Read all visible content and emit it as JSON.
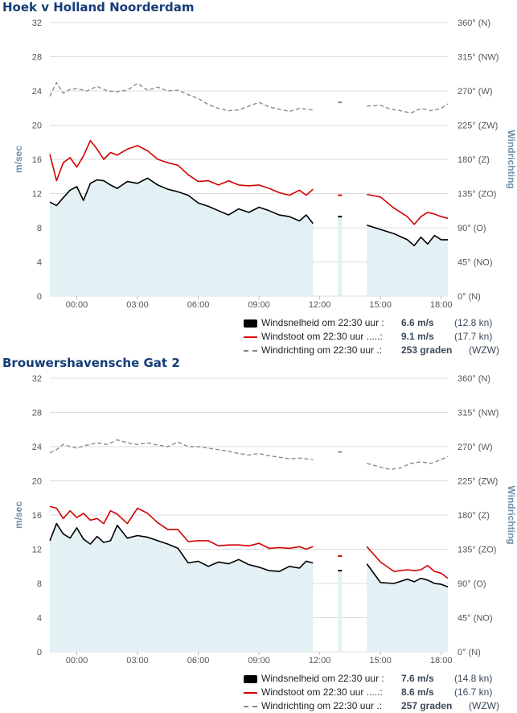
{
  "colors": {
    "speed_line": "#000000",
    "gust_line": "#d40000",
    "direction_line": "#8c8c8c",
    "area_fill": "#e3f1f4",
    "title": "#143c78",
    "axis_title": "#6f8fa8",
    "grid": "#dcdcdc"
  },
  "panels": [
    {
      "title": "Hoek v Holland Noorderdam",
      "legend": {
        "speed": {
          "label": "Windsnelheid om 22:30 uur :",
          "value": "6.6 m/s",
          "sub": "(12.8 kn)"
        },
        "gust": {
          "label": "Windstoot om 22:30 uur .....:",
          "value": "9.1 m/s",
          "sub": "(17.7 kn)"
        },
        "direction": {
          "label": "Windrichting om 22:30 uur .:",
          "value": "253 graden",
          "sub": "(WZW)"
        }
      },
      "chart_data": {
        "type": "line",
        "title": "Hoek v Holland Noorderdam",
        "ylabel": "m/sec",
        "y2label": "Windrichting",
        "ylim": [
          0,
          32
        ],
        "y2lim": [
          0,
          360
        ],
        "xlim": [
          -1.33,
          18.33
        ],
        "x_unit": "hours (00:00 = midnight)",
        "y_ticks": [
          "0",
          "4",
          "8",
          "12",
          "16",
          "20",
          "24",
          "28",
          "32"
        ],
        "y2_ticks": [
          "0° (N)",
          "45° (NO)",
          "90° (O)",
          "135° (ZO)",
          "180° (Z)",
          "225° (ZW)",
          "270° (W)",
          "315° (NW)",
          "360° (N)"
        ],
        "x_ticks": [
          "00:00",
          "03:00",
          "06:00",
          "09:00",
          "12:00",
          "15:00",
          "18:00"
        ],
        "gap": [
          11.67,
          14.17
        ],
        "series": [
          {
            "name": "Windsnelheid",
            "axis": "left",
            "x": [
              -1.33,
              -1.0,
              -0.67,
              -0.33,
              0.0,
              0.33,
              0.67,
              1.0,
              1.33,
              1.67,
              2.0,
              2.5,
              3.0,
              3.5,
              4.0,
              4.5,
              5.0,
              5.5,
              6.0,
              6.5,
              7.0,
              7.5,
              8.0,
              8.5,
              9.0,
              9.5,
              10.0,
              10.5,
              11.0,
              11.33,
              11.67,
              13.0,
              14.33,
              15.0,
              15.67,
              16.33,
              16.67,
              17.0,
              17.33,
              17.67,
              18.0,
              18.33
            ],
            "values": [
              11.0,
              10.6,
              11.5,
              12.4,
              12.8,
              11.2,
              13.2,
              13.6,
              13.5,
              13.0,
              12.6,
              13.4,
              13.2,
              13.8,
              13.0,
              12.5,
              12.2,
              11.8,
              10.9,
              10.5,
              10.0,
              9.5,
              10.2,
              9.8,
              10.4,
              10.0,
              9.5,
              9.3,
              8.8,
              9.5,
              8.5,
              9.3,
              8.3,
              7.8,
              7.3,
              6.6,
              5.9,
              6.9,
              6.1,
              7.1,
              6.6,
              6.6
            ]
          },
          {
            "name": "Windstoot",
            "axis": "left",
            "x": [
              -1.33,
              -1.0,
              -0.67,
              -0.33,
              0.0,
              0.33,
              0.67,
              1.0,
              1.33,
              1.67,
              2.0,
              2.5,
              3.0,
              3.5,
              4.0,
              4.5,
              5.0,
              5.5,
              6.0,
              6.5,
              7.0,
              7.5,
              8.0,
              8.5,
              9.0,
              9.5,
              10.0,
              10.5,
              11.0,
              11.33,
              11.67,
              13.0,
              14.33,
              15.0,
              15.67,
              16.33,
              16.67,
              17.0,
              17.33,
              17.67,
              18.0,
              18.33
            ],
            "values": [
              16.6,
              13.5,
              15.6,
              16.2,
              15.1,
              16.4,
              18.2,
              17.2,
              16.0,
              16.8,
              16.5,
              17.2,
              17.6,
              17.0,
              16.0,
              15.6,
              15.3,
              14.2,
              13.4,
              13.5,
              13.0,
              13.5,
              13.0,
              12.9,
              13.0,
              12.6,
              12.1,
              11.8,
              12.4,
              11.8,
              12.5,
              11.8,
              11.9,
              11.6,
              10.3,
              9.3,
              8.4,
              9.3,
              9.8,
              9.6,
              9.3,
              9.1
            ]
          },
          {
            "name": "Windrichting",
            "axis": "right",
            "x": [
              -1.33,
              -1.0,
              -0.67,
              -0.33,
              0.0,
              0.5,
              1.0,
              1.5,
              2.0,
              2.5,
              3.0,
              3.5,
              4.0,
              4.5,
              5.0,
              5.5,
              6.0,
              6.5,
              7.0,
              7.5,
              8.0,
              8.5,
              9.0,
              9.5,
              10.0,
              10.5,
              11.0,
              11.67,
              13.0,
              14.33,
              15.0,
              15.5,
              16.0,
              16.5,
              17.0,
              17.5,
              18.0,
              18.33
            ],
            "values": [
              263,
              281,
              267,
              272,
              273,
              270,
              276,
              270,
              269,
              271,
              280,
              271,
              275,
              270,
              271,
              265,
              260,
              252,
              247,
              244,
              245,
              250,
              255,
              249,
              246,
              243,
              247,
              245,
              255,
              250,
              251,
              246,
              244,
              241,
              247,
              244,
              247,
              253
            ]
          }
        ]
      }
    },
    {
      "title": "Brouwershavensche Gat 2",
      "legend": {
        "speed": {
          "label": "Windsnelheid om 22:30 uur :",
          "value": "7.6 m/s",
          "sub": "(14.8 kn)"
        },
        "gust": {
          "label": "Windstoot om 22:30 uur .....:",
          "value": "8.6 m/s",
          "sub": "(16.7 kn)"
        },
        "direction": {
          "label": "Windrichting om 22:30 uur .:",
          "value": "257 graden",
          "sub": "(WZW)"
        }
      },
      "chart_data": {
        "type": "line",
        "title": "Brouwershavensche Gat 2",
        "ylabel": "m/sec",
        "y2label": "Windrichting",
        "ylim": [
          0,
          32
        ],
        "y2lim": [
          0,
          360
        ],
        "xlim": [
          -1.33,
          18.33
        ],
        "x_unit": "hours (00:00 = midnight)",
        "y_ticks": [
          "0",
          "4",
          "8",
          "12",
          "16",
          "20",
          "24",
          "28",
          "32"
        ],
        "y2_ticks": [
          "0° (N)",
          "45° (NO)",
          "90° (O)",
          "135° (ZO)",
          "180° (Z)",
          "225° (ZW)",
          "270° (W)",
          "315° (NW)",
          "360° (N)"
        ],
        "x_ticks": [
          "00:00",
          "03:00",
          "06:00",
          "09:00",
          "12:00",
          "15:00",
          "18:00"
        ],
        "gap": [
          11.67,
          14.17
        ],
        "series": [
          {
            "name": "Windsnelheid",
            "axis": "left",
            "x": [
              -1.33,
              -1.0,
              -0.67,
              -0.33,
              0.0,
              0.33,
              0.67,
              1.0,
              1.33,
              1.67,
              2.0,
              2.5,
              3.0,
              3.5,
              4.0,
              4.5,
              5.0,
              5.5,
              6.0,
              6.5,
              7.0,
              7.5,
              8.0,
              8.5,
              9.0,
              9.5,
              10.0,
              10.5,
              11.0,
              11.33,
              11.67,
              13.0,
              14.33,
              15.0,
              15.67,
              16.33,
              16.67,
              17.0,
              17.33,
              17.67,
              18.0,
              18.33
            ],
            "values": [
              13.0,
              15.0,
              13.8,
              13.3,
              14.5,
              13.2,
              12.6,
              13.5,
              12.8,
              13.0,
              14.8,
              13.3,
              13.6,
              13.4,
              13.0,
              12.6,
              12.1,
              10.4,
              10.6,
              10.0,
              10.5,
              10.3,
              10.8,
              10.2,
              9.9,
              9.5,
              9.4,
              10.0,
              9.8,
              10.6,
              10.4,
              9.5,
              10.3,
              8.1,
              8.0,
              8.5,
              8.2,
              8.6,
              8.4,
              8.0,
              7.9,
              7.6
            ]
          },
          {
            "name": "Windstoot",
            "axis": "left",
            "x": [
              -1.33,
              -1.0,
              -0.67,
              -0.33,
              0.0,
              0.33,
              0.67,
              1.0,
              1.33,
              1.67,
              2.0,
              2.5,
              3.0,
              3.5,
              4.0,
              4.5,
              5.0,
              5.5,
              6.0,
              6.5,
              7.0,
              7.5,
              8.0,
              8.5,
              9.0,
              9.5,
              10.0,
              10.5,
              11.0,
              11.33,
              11.67,
              13.0,
              14.33,
              15.0,
              15.67,
              16.33,
              16.67,
              17.0,
              17.33,
              17.67,
              18.0,
              18.33
            ],
            "values": [
              17.0,
              16.8,
              15.6,
              16.5,
              15.7,
              16.2,
              15.4,
              15.6,
              15.0,
              16.5,
              16.1,
              15.0,
              16.8,
              16.2,
              15.1,
              14.3,
              14.3,
              12.9,
              13.0,
              13.0,
              12.4,
              12.5,
              12.5,
              12.4,
              12.7,
              12.1,
              12.2,
              12.1,
              12.3,
              12.0,
              12.3,
              11.2,
              12.3,
              10.5,
              9.4,
              9.6,
              9.5,
              9.6,
              10.1,
              9.4,
              9.2,
              8.6
            ]
          },
          {
            "name": "Windrichting",
            "axis": "right",
            "x": [
              -1.33,
              -1.0,
              -0.67,
              -0.33,
              0.0,
              0.5,
              1.0,
              1.5,
              2.0,
              2.5,
              3.0,
              3.5,
              4.0,
              4.5,
              5.0,
              5.5,
              6.0,
              6.5,
              7.0,
              7.5,
              8.0,
              8.5,
              9.0,
              9.5,
              10.0,
              10.5,
              11.0,
              11.67,
              13.0,
              14.33,
              15.0,
              15.5,
              16.0,
              16.5,
              17.0,
              17.5,
              18.0,
              18.33
            ],
            "values": [
              262,
              266,
              273,
              270,
              268,
              272,
              275,
              273,
              279,
              275,
              273,
              275,
              272,
              270,
              276,
              270,
              270,
              268,
              266,
              264,
              261,
              259,
              261,
              258,
              256,
              254,
              255,
              253,
              263,
              248,
              243,
              240,
              242,
              248,
              250,
              248,
              253,
              257
            ]
          }
        ]
      }
    }
  ]
}
